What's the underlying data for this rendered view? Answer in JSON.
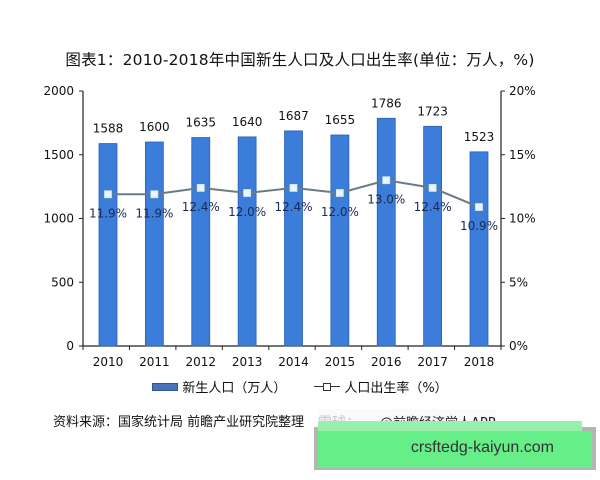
{
  "title": "图表1：2010-2018年中国新生人口及人口出生率(单位：万人，%)",
  "chart_data": {
    "type": "bar",
    "title": "图表1：2010-2018年中国新生人口及人口出生率(单位：万人，%)",
    "categories": [
      "2010",
      "2011",
      "2012",
      "2013",
      "2014",
      "2015",
      "2016",
      "2017",
      "2018"
    ],
    "series": [
      {
        "name": "新生人口（万人）",
        "type": "bar",
        "axis": "left",
        "color": "#3b7dd8",
        "values": [
          1588,
          1600,
          1635,
          1640,
          1687,
          1655,
          1786,
          1723,
          1523
        ],
        "labels": [
          "1588",
          "1600",
          "1635",
          "1640",
          "1687",
          "1655",
          "1786",
          "1723",
          "1523"
        ]
      },
      {
        "name": "人口出生率（%）",
        "type": "line",
        "axis": "right",
        "color": "#6b7b84",
        "values": [
          11.9,
          11.9,
          12.4,
          12.0,
          12.4,
          12.0,
          13.0,
          12.4,
          10.9
        ],
        "labels": [
          "11.9%",
          "11.9%",
          "12.4%",
          "12.0%",
          "12.4%",
          "12.0%",
          "13.0%",
          "12.4%",
          "10.9%"
        ]
      }
    ],
    "xlabel": "",
    "ylabel": "",
    "y2label": "",
    "ylim": [
      0,
      2000
    ],
    "y2lim": [
      0,
      20
    ],
    "yticks": [
      "0",
      "500",
      "1000",
      "1500",
      "2000"
    ],
    "y2ticks": [
      "0%",
      "5%",
      "10%",
      "15%",
      "20%"
    ],
    "grid": false,
    "legend_position": "bottom"
  },
  "legend": {
    "bar_label": "新生人口（万人）",
    "line_label": "人口出生率（%）"
  },
  "source": "资料来源：国家统计局 前瞻产业研究院整理",
  "credit": {
    "xueqiu": "雪球：",
    "author": "@前瞻经济学人APP"
  },
  "overlay": {
    "text": "crsftedg-kaiyun.com",
    "color": "#66ee88"
  }
}
